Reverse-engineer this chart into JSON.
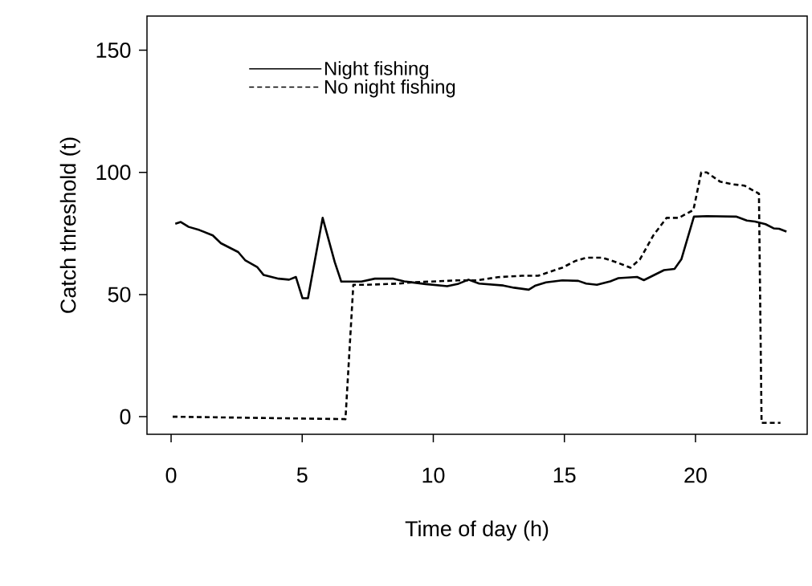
{
  "chart_data": {
    "type": "line",
    "xlabel": "Time of day (h)",
    "ylabel": "Catch threshold (t)",
    "xlim": [
      -0.92,
      24.26
    ],
    "ylim": [
      -7.2,
      164
    ],
    "xticks": [
      0,
      5,
      10,
      15,
      20
    ],
    "yticks": [
      0,
      50,
      100,
      150
    ],
    "grid": false,
    "legend": "top left",
    "marker": "none",
    "series": [
      {
        "name": "Night fishing",
        "color": "#000000",
        "line_style": "solid",
        "x": [
          0.16,
          0.37,
          0.67,
          1.08,
          1.59,
          1.9,
          2.56,
          2.82,
          3.28,
          3.53,
          4.1,
          4.5,
          4.76,
          5.01,
          5.22,
          5.78,
          6.24,
          6.49,
          7.26,
          7.77,
          8.48,
          8.89,
          9.71,
          10.53,
          10.93,
          11.34,
          11.75,
          12.67,
          13.08,
          13.64,
          13.9,
          14.3,
          14.92,
          15.53,
          15.83,
          16.24,
          16.75,
          17.06,
          17.77,
          18.03,
          18.8,
          19.2,
          19.46,
          19.94,
          20.43,
          21.55,
          21.96,
          22.27,
          22.67,
          22.98,
          23.19,
          23.47
        ],
        "values": [
          79,
          79.7,
          77.7,
          76.4,
          74.2,
          71,
          67.4,
          64.1,
          61.3,
          58,
          56.5,
          56.1,
          57.2,
          48.5,
          48.5,
          81.4,
          63.3,
          55.3,
          55.3,
          56.5,
          56.5,
          55.4,
          54.3,
          53.4,
          54.3,
          56.1,
          54.5,
          53.7,
          52.8,
          52,
          53.7,
          55,
          55.8,
          55.6,
          54.5,
          54,
          55.4,
          56.7,
          57.2,
          55.9,
          60,
          60.5,
          64.4,
          81.9,
          82.1,
          81.9,
          80.3,
          79.9,
          78.8,
          77.1,
          76.9,
          75.8
        ]
      },
      {
        "name": "No night fishing",
        "color": "#000000",
        "line_style": "dashed",
        "x": [
          0.06,
          6.65,
          6.95,
          7.46,
          8.69,
          9.2,
          10.93,
          11.65,
          12.47,
          13.38,
          14,
          14.92,
          15.43,
          15.83,
          16.45,
          16.96,
          17.52,
          17.88,
          18.39,
          18.9,
          19.36,
          19.92,
          20.22,
          20.43,
          20.94,
          21.45,
          21.86,
          22.42,
          22.52,
          23.24
        ],
        "values": [
          0,
          -1,
          54,
          54,
          54.5,
          55,
          55.8,
          55.8,
          57.1,
          57.7,
          57.7,
          61,
          63.8,
          65.1,
          65.1,
          63.3,
          61,
          64.4,
          74.2,
          81.4,
          81.4,
          84.6,
          100,
          100,
          96.2,
          95.1,
          94.6,
          91.3,
          -2.5,
          -2.5
        ]
      }
    ]
  }
}
